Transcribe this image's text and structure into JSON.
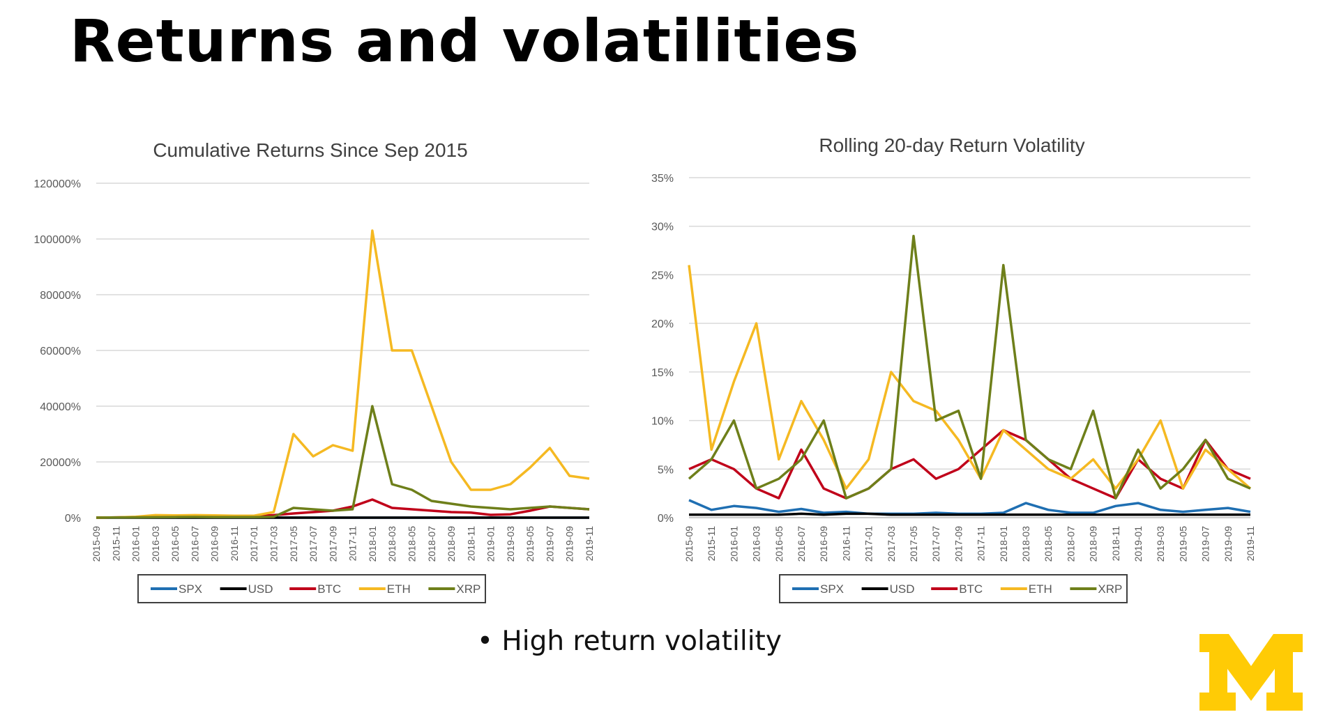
{
  "slide": {
    "title": "Returns and volatilities",
    "bullet": "• High return volatility",
    "logo_name": "university-block-m-logo"
  },
  "colors": {
    "SPX": "#1f6fb2",
    "USD": "#000000",
    "BTC": "#c0001a",
    "ETH": "#f5b922",
    "XRP": "#6e7f1a",
    "grid": "#d9d9d9",
    "logo": "#ffcb05"
  },
  "chart_data": [
    {
      "type": "line",
      "title": "Cumulative Returns Since Sep 2015",
      "xlabel": "",
      "ylabel": "",
      "ylim": [
        0,
        120000
      ],
      "yticks": [
        "0%",
        "20000%",
        "40000%",
        "60000%",
        "80000%",
        "100000%",
        "120000%"
      ],
      "xticks": [
        "2015-09",
        "2015-11",
        "2016-01",
        "2016-03",
        "2016-05",
        "2016-07",
        "2016-09",
        "2016-11",
        "2017-01",
        "2017-03",
        "2017-05",
        "2017-07",
        "2017-09",
        "2017-11",
        "2018-01",
        "2018-03",
        "2018-05",
        "2018-07",
        "2018-09",
        "2018-11",
        "2019-01",
        "2019-03",
        "2019-05",
        "2019-07",
        "2019-09",
        "2019-11"
      ],
      "grid": true,
      "legend": "bottom",
      "series": [
        {
          "name": "SPX",
          "values": [
            0,
            0,
            0,
            0,
            0,
            0,
            0,
            0,
            0,
            0,
            0,
            0,
            0,
            0,
            0,
            0,
            0,
            0,
            0,
            0,
            0,
            0,
            0,
            0,
            0,
            0
          ]
        },
        {
          "name": "USD",
          "values": [
            0,
            0,
            0,
            0,
            0,
            0,
            0,
            0,
            0,
            0,
            0,
            0,
            0,
            0,
            0,
            0,
            0,
            0,
            0,
            0,
            0,
            0,
            0,
            0,
            0,
            0
          ]
        },
        {
          "name": "BTC",
          "values": [
            0,
            100,
            200,
            300,
            300,
            500,
            400,
            400,
            600,
            900,
            1500,
            2000,
            2500,
            4000,
            6500,
            3500,
            3000,
            2500,
            2000,
            1800,
            1000,
            1200,
            2500,
            4000,
            3500,
            3000
          ]
        },
        {
          "name": "ETH",
          "values": [
            0,
            100,
            300,
            900,
            800,
            900,
            800,
            700,
            700,
            2000,
            30000,
            22000,
            26000,
            24000,
            103000,
            60000,
            60000,
            40000,
            20000,
            10000,
            10000,
            12000,
            18000,
            25000,
            15000,
            14000
          ]
        },
        {
          "name": "XRP",
          "values": [
            0,
            50,
            100,
            150,
            200,
            250,
            200,
            200,
            200,
            300,
            3500,
            3000,
            2500,
            3000,
            40000,
            12000,
            10000,
            6000,
            5000,
            4000,
            3500,
            3000,
            3500,
            4000,
            3500,
            3000
          ]
        }
      ]
    },
    {
      "type": "line",
      "title": "Rolling 20-day Return Volatility",
      "xlabel": "",
      "ylabel": "",
      "ylim": [
        0,
        35
      ],
      "yticks": [
        "0%",
        "5%",
        "10%",
        "15%",
        "20%",
        "25%",
        "30%",
        "35%"
      ],
      "xticks": [
        "2015-09",
        "2015-11",
        "2016-01",
        "2016-03",
        "2016-05",
        "2016-07",
        "2016-09",
        "2016-11",
        "2017-01",
        "2017-03",
        "2017-05",
        "2017-07",
        "2017-09",
        "2017-11",
        "2018-01",
        "2018-03",
        "2018-05",
        "2018-07",
        "2018-09",
        "2018-11",
        "2019-01",
        "2019-03",
        "2019-05",
        "2019-07",
        "2019-09",
        "2019-11"
      ],
      "grid": true,
      "legend": "bottom",
      "series": [
        {
          "name": "SPX",
          "values": [
            1.8,
            0.8,
            1.2,
            1.0,
            0.6,
            0.9,
            0.5,
            0.6,
            0.4,
            0.4,
            0.4,
            0.5,
            0.4,
            0.4,
            0.5,
            1.5,
            0.8,
            0.5,
            0.5,
            1.2,
            1.5,
            0.8,
            0.6,
            0.8,
            1.0,
            0.6
          ]
        },
        {
          "name": "USD",
          "values": [
            0.3,
            0.3,
            0.3,
            0.3,
            0.3,
            0.4,
            0.3,
            0.4,
            0.4,
            0.3,
            0.3,
            0.3,
            0.3,
            0.3,
            0.3,
            0.3,
            0.3,
            0.3,
            0.3,
            0.3,
            0.3,
            0.3,
            0.3,
            0.3,
            0.3,
            0.3
          ]
        },
        {
          "name": "BTC",
          "values": [
            5,
            6,
            5,
            3,
            2,
            7,
            3,
            2,
            3,
            5,
            6,
            4,
            5,
            7,
            9,
            8,
            6,
            4,
            3,
            2,
            6,
            4,
            3,
            8,
            5,
            4
          ]
        },
        {
          "name": "ETH",
          "values": [
            26,
            7,
            14,
            20,
            6,
            12,
            8,
            3,
            6,
            15,
            12,
            11,
            8,
            4,
            9,
            7,
            5,
            4,
            6,
            3,
            6,
            10,
            3,
            7,
            5,
            3
          ]
        },
        {
          "name": "XRP",
          "values": [
            4,
            6,
            10,
            3,
            4,
            6,
            10,
            2,
            3,
            5,
            29,
            10,
            11,
            4,
            26,
            8,
            6,
            5,
            11,
            2,
            7,
            3,
            5,
            8,
            4,
            3
          ]
        }
      ]
    }
  ]
}
